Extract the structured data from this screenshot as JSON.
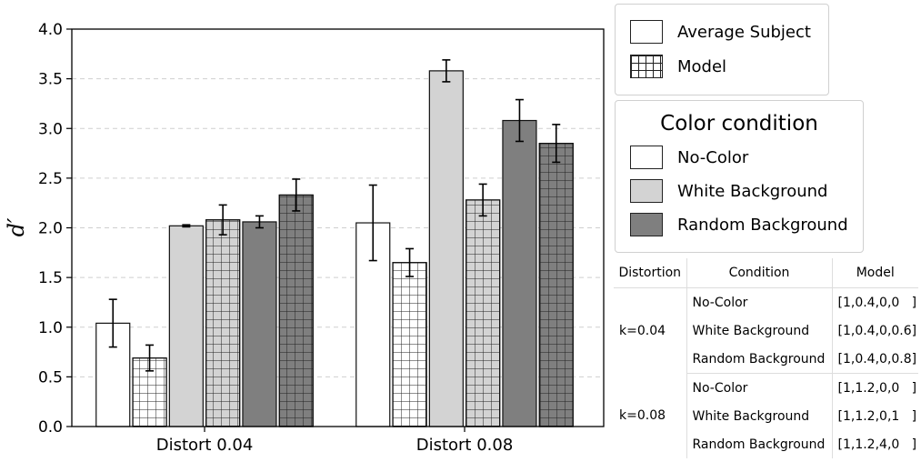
{
  "chart_data": {
    "type": "bar",
    "ylabel": "d′",
    "ylim": [
      0,
      4
    ],
    "yticks": [
      "0.0",
      "0.5",
      "1.0",
      "1.5",
      "2.0",
      "2.5",
      "3.0",
      "3.5",
      "4.0"
    ],
    "grid": "horizontal dashed",
    "categories": [
      "Distort 0.04",
      "Distort 0.08"
    ],
    "series": [
      {
        "name": "No-Color / Average Subject",
        "condition": "No-Color",
        "source": "Average Subject",
        "color": "#ffffff",
        "values": [
          1.04,
          2.05
        ],
        "errors": [
          0.24,
          0.38
        ]
      },
      {
        "name": "No-Color / Model",
        "condition": "No-Color",
        "source": "Model",
        "color": "#ffffff",
        "values": [
          0.69,
          1.65
        ],
        "errors": [
          0.13,
          0.14
        ]
      },
      {
        "name": "White Background / Average Subject",
        "condition": "White Background",
        "source": "Average Subject",
        "color": "#d3d3d3",
        "values": [
          2.02,
          3.58
        ],
        "errors": [
          0.01,
          0.11
        ]
      },
      {
        "name": "White Background / Model",
        "condition": "White Background",
        "source": "Model",
        "color": "#d3d3d3",
        "values": [
          2.08,
          2.28
        ],
        "errors": [
          0.15,
          0.16
        ]
      },
      {
        "name": "Random Background / Average Subject",
        "condition": "Random Background",
        "source": "Average Subject",
        "color": "#7f7f7f",
        "values": [
          2.06,
          3.08
        ],
        "errors": [
          0.06,
          0.21
        ]
      },
      {
        "name": "Random Background / Model",
        "condition": "Random Background",
        "source": "Model",
        "color": "#7f7f7f",
        "values": [
          2.33,
          2.85
        ],
        "errors": [
          0.16,
          0.19
        ]
      }
    ]
  },
  "legend_source": {
    "items": [
      {
        "label": "Average Subject",
        "pattern": "plain"
      },
      {
        "label": "Model",
        "pattern": "grid"
      }
    ]
  },
  "legend_color": {
    "title": "Color condition",
    "items": [
      {
        "label": "No-Color",
        "color": "#ffffff"
      },
      {
        "label": "White Background",
        "color": "#d3d3d3"
      },
      {
        "label": "Random Background",
        "color": "#7f7f7f"
      }
    ]
  },
  "table": {
    "headers": [
      "Distortion",
      "Condition",
      "Model"
    ],
    "groups": [
      {
        "distortion": "k=0.04",
        "rows": [
          {
            "condition": "No-Color",
            "model": "[1,0.4,0,0   ]"
          },
          {
            "condition": "White Background",
            "model": "[1,0.4,0,0.6]"
          },
          {
            "condition": "Random Background",
            "model": "[1,0.4,0,0.8]"
          }
        ]
      },
      {
        "distortion": "k=0.08",
        "rows": [
          {
            "condition": "No-Color",
            "model": "[1,1.2,0,0   ]"
          },
          {
            "condition": "White Background",
            "model": "[1,1.2,0,1   ]"
          },
          {
            "condition": "Random Background",
            "model": "[1,1.2,4,0   ]"
          }
        ]
      }
    ]
  }
}
